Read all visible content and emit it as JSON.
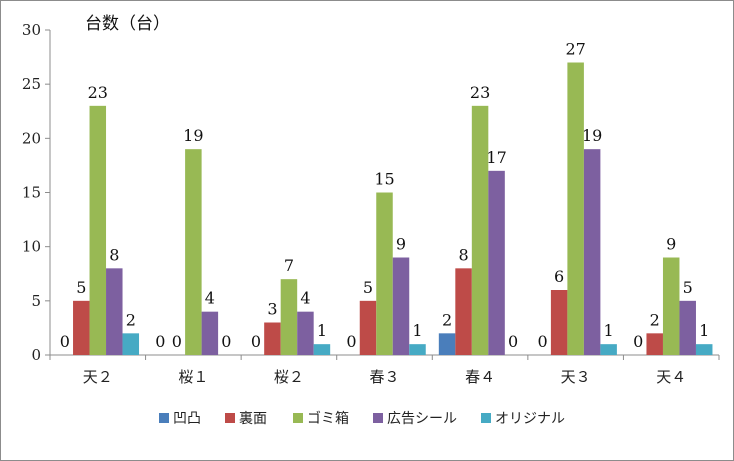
{
  "chart_data": {
    "type": "bar",
    "title": "",
    "ylabel": "台数（台）",
    "xlabel": "",
    "ylim": [
      0,
      30
    ],
    "yticks": [
      0,
      5,
      10,
      15,
      20,
      25,
      30
    ],
    "grid": false,
    "legend_position": "bottom",
    "categories": [
      "天２",
      "桜１",
      "桜２",
      "春３",
      "春４",
      "天３",
      "天４"
    ],
    "series": [
      {
        "name": "凹凸",
        "color": "#4a7ebb",
        "values": [
          0,
          0,
          0,
          0,
          2,
          0,
          0
        ]
      },
      {
        "name": "裏面",
        "color": "#be4b48",
        "values": [
          5,
          0,
          3,
          5,
          8,
          6,
          2
        ]
      },
      {
        "name": "ゴミ箱",
        "color": "#98b954",
        "values": [
          23,
          19,
          7,
          15,
          23,
          27,
          9
        ]
      },
      {
        "name": "広告シール",
        "color": "#7d60a0",
        "values": [
          8,
          4,
          4,
          9,
          17,
          19,
          5
        ]
      },
      {
        "name": "オリジナル",
        "color": "#46aac4",
        "values": [
          2,
          0,
          1,
          1,
          0,
          1,
          1
        ]
      }
    ],
    "data_labels": [
      [
        "0",
        "5",
        "23",
        "8",
        "2"
      ],
      [
        "0",
        "0",
        "19",
        "4",
        "0"
      ],
      [
        "0",
        "3",
        "7",
        "4",
        "1"
      ],
      [
        "0",
        "5",
        "15",
        "9",
        "1"
      ],
      [
        "2",
        "8",
        "23",
        "17",
        "0"
      ],
      [
        "0",
        "6",
        "27",
        "19",
        "1"
      ],
      [
        "0",
        "2",
        "9",
        "5",
        "1"
      ]
    ]
  }
}
